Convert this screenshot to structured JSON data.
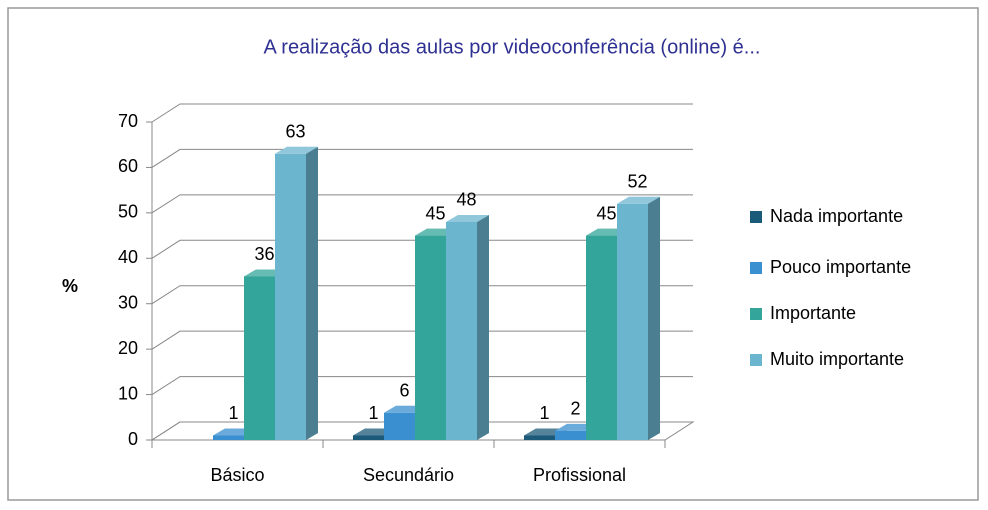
{
  "chart_data": {
    "type": "bar3d",
    "title": "A realização das aulas por videoconferência (online) é...",
    "y_label": "%",
    "categories": [
      "Básico",
      "Secundário",
      "Profissional"
    ],
    "series": [
      {
        "name": "Nada importante",
        "color": "#1b5a78",
        "values": [
          null,
          1,
          1
        ]
      },
      {
        "name": "Pouco importante",
        "color": "#3a8fd0",
        "values": [
          1,
          6,
          2
        ]
      },
      {
        "name": "Importante",
        "color": "#33a59a",
        "values": [
          36,
          45,
          45
        ]
      },
      {
        "name": "Muito importante",
        "color": "#6bb5cf",
        "values": [
          63,
          48,
          52
        ]
      }
    ],
    "ylim": [
      0,
      70
    ],
    "yticks": [
      0,
      10,
      20,
      30,
      40,
      50,
      60,
      70
    ],
    "grid": true,
    "legend": "right"
  }
}
